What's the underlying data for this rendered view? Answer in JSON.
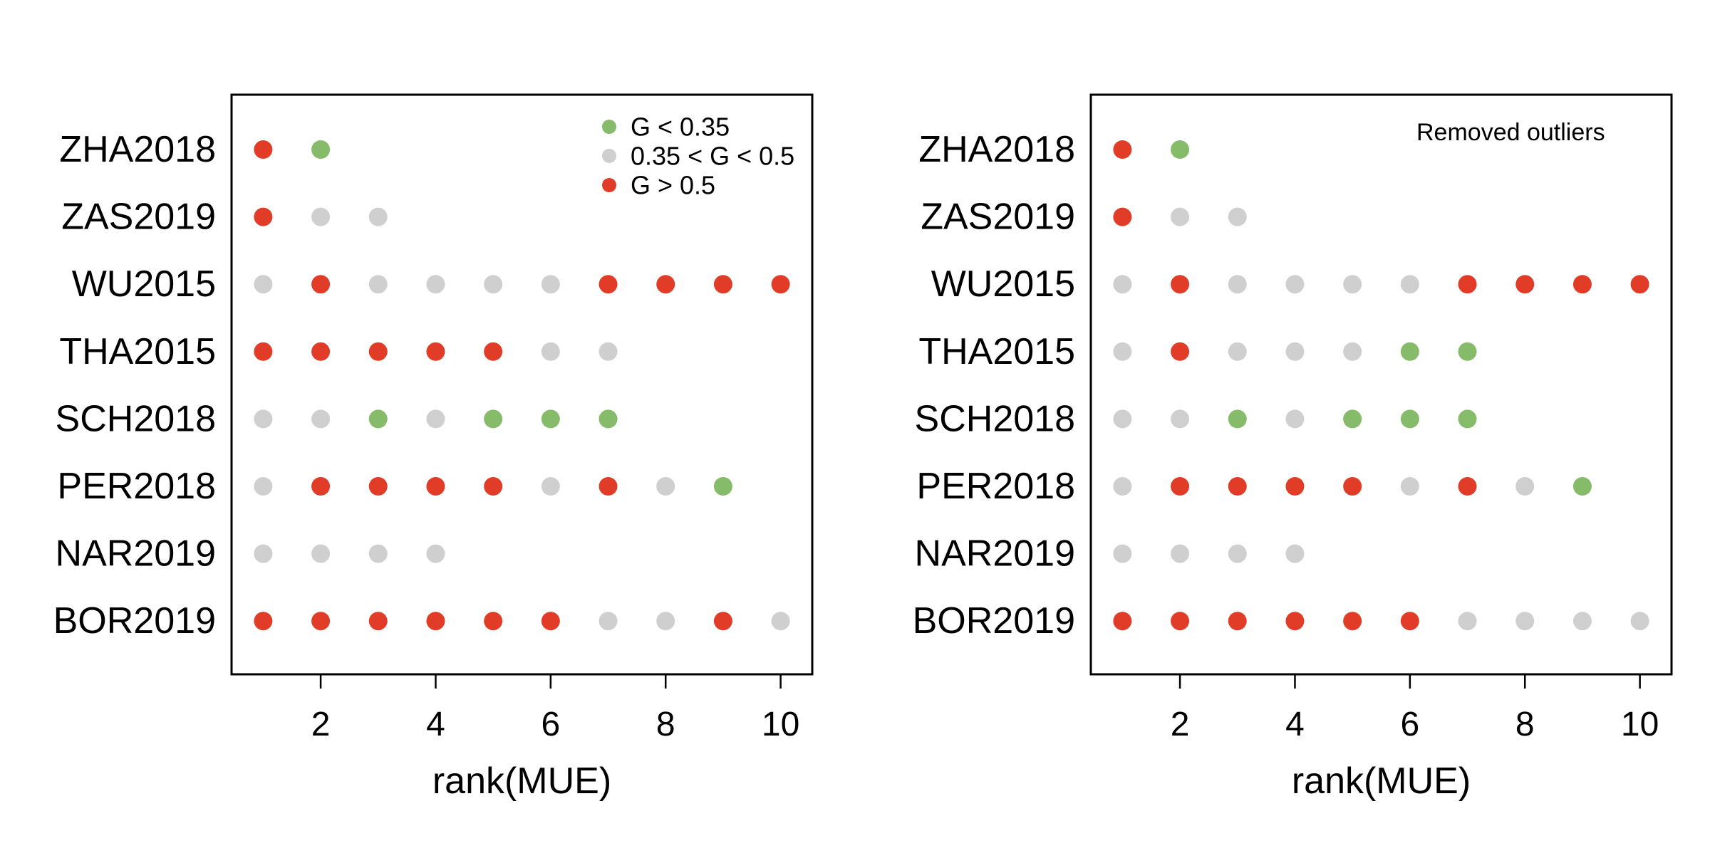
{
  "colors": {
    "green": "#86BB6A",
    "gray": "#CFCFCF",
    "red": "#E03C28"
  },
  "legend": [
    {
      "label": "G < 0.35",
      "color_key": "green"
    },
    {
      "label": "0.35 < G < 0.5",
      "color_key": "gray"
    },
    {
      "label": "G > 0.5",
      "color_key": "red"
    }
  ],
  "chart_data": [
    {
      "type": "scatter",
      "xlabel": "rank(MUE)",
      "ylabel": "",
      "xlim": [
        0.45,
        10.55
      ],
      "xticks": [
        2,
        4,
        6,
        8,
        10
      ],
      "annotation": "",
      "show_legend": true,
      "legend_position": "top-right",
      "categories": [
        "ZHA2018",
        "ZAS2019",
        "WU2015",
        "THA2015",
        "SCH2018",
        "PER2018",
        "NAR2019",
        "BOR2019"
      ],
      "series": [
        {
          "category": "ZHA2018",
          "points": [
            "red",
            "green"
          ]
        },
        {
          "category": "ZAS2019",
          "points": [
            "red",
            "gray",
            "gray"
          ]
        },
        {
          "category": "WU2015",
          "points": [
            "gray",
            "red",
            "gray",
            "gray",
            "gray",
            "gray",
            "red",
            "red",
            "red",
            "red"
          ]
        },
        {
          "category": "THA2015",
          "points": [
            "red",
            "red",
            "red",
            "red",
            "red",
            "gray",
            "gray"
          ]
        },
        {
          "category": "SCH2018",
          "points": [
            "gray",
            "gray",
            "green",
            "gray",
            "green",
            "green",
            "green"
          ]
        },
        {
          "category": "PER2018",
          "points": [
            "gray",
            "red",
            "red",
            "red",
            "red",
            "gray",
            "red",
            "gray",
            "green"
          ]
        },
        {
          "category": "NAR2019",
          "points": [
            "gray",
            "gray",
            "gray",
            "gray"
          ]
        },
        {
          "category": "BOR2019",
          "points": [
            "red",
            "red",
            "red",
            "red",
            "red",
            "red",
            "gray",
            "gray",
            "red",
            "gray"
          ]
        }
      ]
    },
    {
      "type": "scatter",
      "xlabel": "rank(MUE)",
      "ylabel": "",
      "xlim": [
        0.45,
        10.55
      ],
      "xticks": [
        2,
        4,
        6,
        8,
        10
      ],
      "annotation": "Removed outliers",
      "show_legend": false,
      "categories": [
        "ZHA2018",
        "ZAS2019",
        "WU2015",
        "THA2015",
        "SCH2018",
        "PER2018",
        "NAR2019",
        "BOR2019"
      ],
      "series": [
        {
          "category": "ZHA2018",
          "points": [
            "red",
            "green"
          ]
        },
        {
          "category": "ZAS2019",
          "points": [
            "red",
            "gray",
            "gray"
          ]
        },
        {
          "category": "WU2015",
          "points": [
            "gray",
            "red",
            "gray",
            "gray",
            "gray",
            "gray",
            "red",
            "red",
            "red",
            "red"
          ]
        },
        {
          "category": "THA2015",
          "points": [
            "gray",
            "red",
            "gray",
            "gray",
            "gray",
            "green",
            "green"
          ]
        },
        {
          "category": "SCH2018",
          "points": [
            "gray",
            "gray",
            "green",
            "gray",
            "green",
            "green",
            "green"
          ]
        },
        {
          "category": "PER2018",
          "points": [
            "gray",
            "red",
            "red",
            "red",
            "red",
            "gray",
            "red",
            "gray",
            "green"
          ]
        },
        {
          "category": "NAR2019",
          "points": [
            "gray",
            "gray",
            "gray",
            "gray"
          ]
        },
        {
          "category": "BOR2019",
          "points": [
            "red",
            "red",
            "red",
            "red",
            "red",
            "red",
            "gray",
            "gray",
            "gray",
            "gray"
          ]
        }
      ]
    }
  ]
}
